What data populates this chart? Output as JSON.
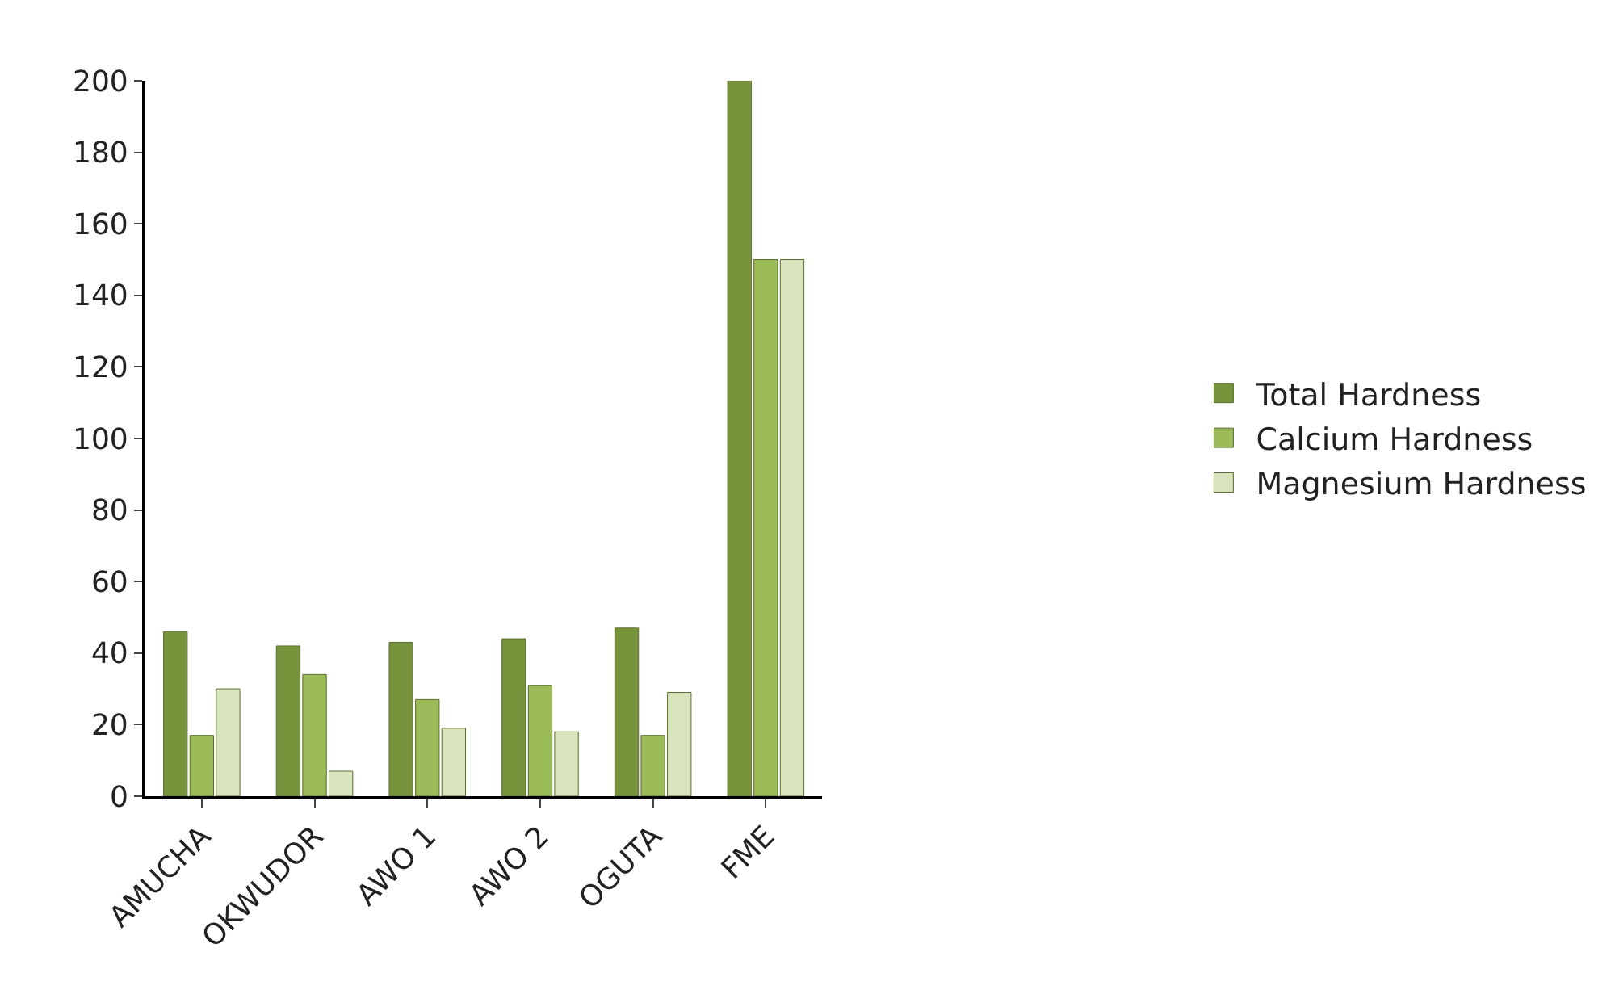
{
  "chart_data": {
    "type": "bar",
    "categories": [
      "AMUCHA",
      "OKWUDOR",
      "AWO 1",
      "AWO 2",
      "OGUTA",
      "FME"
    ],
    "series": [
      {
        "name": "Total Hardness",
        "color": "#77933c",
        "values": [
          46,
          42,
          43,
          44,
          47,
          200
        ]
      },
      {
        "name": "Calcium Hardness",
        "color": "#9bbb59",
        "values": [
          17,
          34,
          27,
          31,
          17,
          150
        ]
      },
      {
        "name": "Magnesium Hardness",
        "color": "#d7e4bd",
        "values": [
          30,
          7,
          19,
          18,
          29,
          150
        ]
      }
    ],
    "ylim": [
      0,
      200
    ],
    "yticks": [
      0,
      20,
      40,
      60,
      80,
      100,
      120,
      140,
      160,
      180,
      200
    ],
    "legend": "right"
  }
}
